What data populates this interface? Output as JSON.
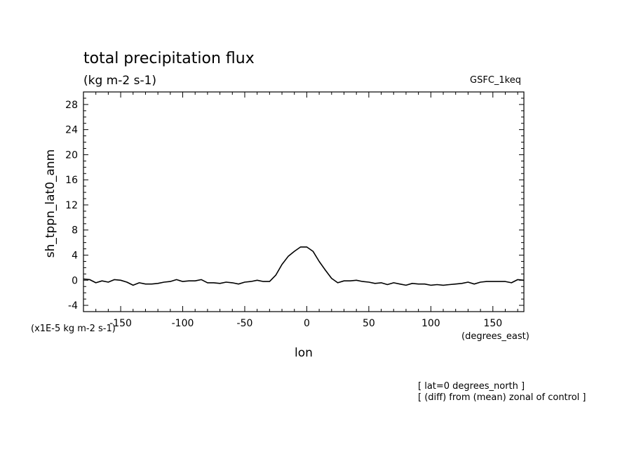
{
  "chart_data": {
    "type": "line",
    "title": "total precipitation flux",
    "subtitle": "(kg m-2 s-1)",
    "model_label": "GSFC_1keq",
    "ylabel": "sh_tppn_lat0_anm",
    "xlabel": "lon",
    "y_scale_note": "(x1E-5 kg m-2 s-1)",
    "x_unit_note": "(degrees_east)",
    "footnotes": [
      "[ lat=0 degrees_north ]",
      "[ (diff) from (mean) zonal of control ]"
    ],
    "xlim": [
      -180,
      175
    ],
    "ylim": [
      -5,
      30
    ],
    "xticks": [
      -150,
      -100,
      -50,
      0,
      50,
      100,
      150
    ],
    "xtick_labels": [
      "-150",
      "-100",
      "-50",
      "0",
      "50",
      "100",
      "150"
    ],
    "yticks": [
      -4,
      0,
      4,
      8,
      12,
      16,
      20,
      24,
      28
    ],
    "ytick_labels": [
      "-4",
      "0",
      "4",
      "8",
      "12",
      "16",
      "20",
      "24",
      "28"
    ],
    "grid": false,
    "series": [
      {
        "x": [
          -180,
          -175,
          -170,
          -165,
          -160,
          -155,
          -150,
          -145,
          -140,
          -135,
          -130,
          -125,
          -120,
          -115,
          -110,
          -105,
          -100,
          -95,
          -90,
          -85,
          -80,
          -75,
          -70,
          -65,
          -60,
          -55,
          -50,
          -45,
          -40,
          -35,
          -30,
          -25,
          -20,
          -15,
          -10,
          -5,
          0,
          5,
          10,
          15,
          20,
          25,
          30,
          35,
          40,
          45,
          50,
          55,
          60,
          65,
          70,
          75,
          80,
          85,
          90,
          95,
          100,
          105,
          110,
          115,
          120,
          125,
          130,
          135,
          140,
          145,
          150,
          155,
          160,
          165,
          170,
          175
        ],
        "values": [
          0.2,
          0.1,
          -0.4,
          -0.1,
          -0.3,
          0.1,
          0.0,
          -0.3,
          -0.8,
          -0.4,
          -0.6,
          -0.6,
          -0.5,
          -0.3,
          -0.2,
          0.1,
          -0.2,
          -0.1,
          -0.1,
          0.1,
          -0.4,
          -0.4,
          -0.5,
          -0.3,
          -0.4,
          -0.6,
          -0.3,
          -0.2,
          0.0,
          -0.2,
          -0.2,
          0.8,
          2.5,
          3.8,
          4.6,
          5.3,
          5.3,
          4.6,
          3.0,
          1.6,
          0.3,
          -0.4,
          -0.1,
          -0.1,
          0.0,
          -0.2,
          -0.3,
          -0.5,
          -0.4,
          -0.7,
          -0.4,
          -0.6,
          -0.8,
          -0.5,
          -0.6,
          -0.6,
          -0.8,
          -0.7,
          -0.8,
          -0.7,
          -0.6,
          -0.5,
          -0.3,
          -0.6,
          -0.3,
          -0.2,
          -0.2,
          -0.2,
          -0.2,
          -0.4,
          0.1,
          0.0
        ]
      }
    ]
  }
}
